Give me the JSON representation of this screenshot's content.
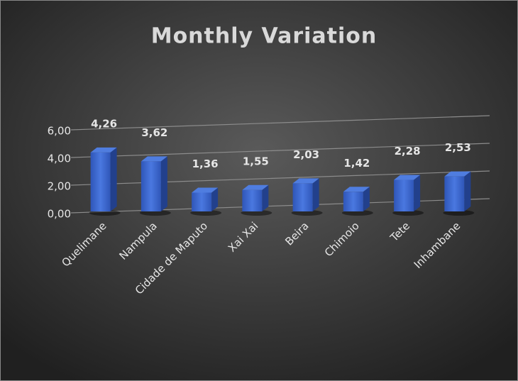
{
  "chart_data": {
    "type": "bar3d",
    "title": "Monthly Variation",
    "categories": [
      "Quelimane",
      "Nampula",
      "Cidade de Maputo",
      "Xai Xai",
      "Beira",
      "Chimoio",
      "Tete",
      "Inhambane"
    ],
    "values": [
      4.26,
      3.62,
      1.36,
      1.55,
      2.03,
      1.42,
      2.28,
      2.53
    ],
    "value_labels": [
      "4,26",
      "3,62",
      "1,36",
      "1,55",
      "2,03",
      "1,42",
      "2,28",
      "2,53"
    ],
    "color": "#3a64c8",
    "ylim": [
      0,
      6
    ],
    "yticks": [
      {
        "value": 0,
        "label": "0,00"
      },
      {
        "value": 2,
        "label": "2,00"
      },
      {
        "value": 4,
        "label": "4,00"
      },
      {
        "value": 6,
        "label": "6,00"
      }
    ],
    "grid": true
  }
}
